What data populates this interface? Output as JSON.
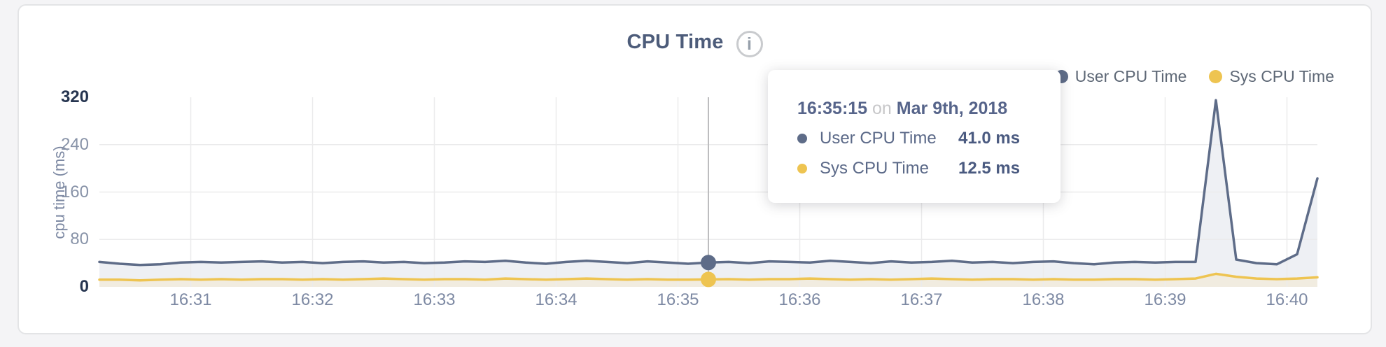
{
  "header": {
    "title": "CPU Time",
    "info_glyph": "i"
  },
  "legend": [
    {
      "label": "User CPU Time",
      "color": "#5e6c88"
    },
    {
      "label": "Sys CPU Time",
      "color": "#eec451"
    }
  ],
  "tooltip": {
    "time": "16:35:15",
    "conjunction": "on",
    "date": "Mar 9th, 2018",
    "rows": [
      {
        "label": "User CPU Time",
        "value": "41.0 ms",
        "color": "#5e6c88"
      },
      {
        "label": "Sys CPU Time",
        "value": "12.5 ms",
        "color": "#eec451"
      }
    ]
  },
  "colors": {
    "page_bg": "#f4f4f6",
    "card_bg": "#ffffff",
    "card_border": "#e3e4e6",
    "grid": "#ebebec",
    "crosshair": "#bdbdbf",
    "user_line": "#5e6c88",
    "user_fill": "#eef0f4",
    "sys_line": "#eec451",
    "sys_fill": "#f1ece0",
    "tick_dark": "#263550",
    "tick_light": "#8893a8"
  },
  "chart_data": {
    "type": "area",
    "title": "CPU Time",
    "xlabel": "",
    "ylabel": "cpu time (ms)",
    "ylim": [
      0,
      320
    ],
    "y_ticks": [
      0,
      80,
      160,
      240,
      320
    ],
    "x_ticks": [
      "16:31",
      "16:32",
      "16:33",
      "16:34",
      "16:35",
      "16:36",
      "16:37",
      "16:38",
      "16:39",
      "16:40"
    ],
    "grid": true,
    "legend_position": "top-right",
    "hover_index": 30,
    "hover_label": "16:35:15 on Mar 9th, 2018",
    "x": [
      "16:30:15",
      "16:30:25",
      "16:30:35",
      "16:30:45",
      "16:30:55",
      "16:31:05",
      "16:31:15",
      "16:31:25",
      "16:31:35",
      "16:31:45",
      "16:31:55",
      "16:32:05",
      "16:32:15",
      "16:32:25",
      "16:32:35",
      "16:32:45",
      "16:32:55",
      "16:33:05",
      "16:33:15",
      "16:33:25",
      "16:33:35",
      "16:33:45",
      "16:33:55",
      "16:34:05",
      "16:34:15",
      "16:34:25",
      "16:34:35",
      "16:34:45",
      "16:34:55",
      "16:35:05",
      "16:35:15",
      "16:35:25",
      "16:35:35",
      "16:35:45",
      "16:35:55",
      "16:36:05",
      "16:36:15",
      "16:36:25",
      "16:36:35",
      "16:36:45",
      "16:36:55",
      "16:37:05",
      "16:37:15",
      "16:37:25",
      "16:37:35",
      "16:37:45",
      "16:37:55",
      "16:38:05",
      "16:38:15",
      "16:38:25",
      "16:38:35",
      "16:38:45",
      "16:38:55",
      "16:39:05",
      "16:39:15",
      "16:39:25",
      "16:39:35",
      "16:39:45",
      "16:39:55",
      "16:40:05",
      "16:40:15"
    ],
    "series": [
      {
        "name": "User CPU Time",
        "color": "#5e6c88",
        "fill": "#eef0f4",
        "values": [
          42,
          39,
          37,
          38,
          41,
          42,
          41,
          42,
          43,
          41,
          42,
          40,
          42,
          43,
          41,
          42,
          40,
          41,
          43,
          42,
          44,
          41,
          39,
          42,
          44,
          42,
          40,
          43,
          41,
          39,
          41,
          42,
          40,
          43,
          42,
          41,
          44,
          42,
          40,
          43,
          41,
          42,
          44,
          41,
          42,
          40,
          42,
          43,
          40,
          38,
          41,
          42,
          41,
          42,
          42,
          315,
          46,
          40,
          38,
          55,
          183
        ]
      },
      {
        "name": "Sys CPU Time",
        "color": "#eec451",
        "fill": "#f1ece0",
        "values": [
          12,
          12,
          11,
          12,
          13,
          12,
          13,
          12,
          13,
          13,
          12,
          13,
          12,
          13,
          14,
          13,
          12,
          13,
          13,
          12,
          14,
          13,
          12,
          13,
          14,
          13,
          12,
          13,
          12,
          12,
          12.5,
          13,
          12,
          13,
          13,
          14,
          13,
          12,
          13,
          12,
          13,
          14,
          13,
          12,
          13,
          13,
          12,
          13,
          12,
          12,
          13,
          13,
          12,
          13,
          14,
          22,
          17,
          14,
          13,
          14,
          16
        ]
      }
    ]
  }
}
